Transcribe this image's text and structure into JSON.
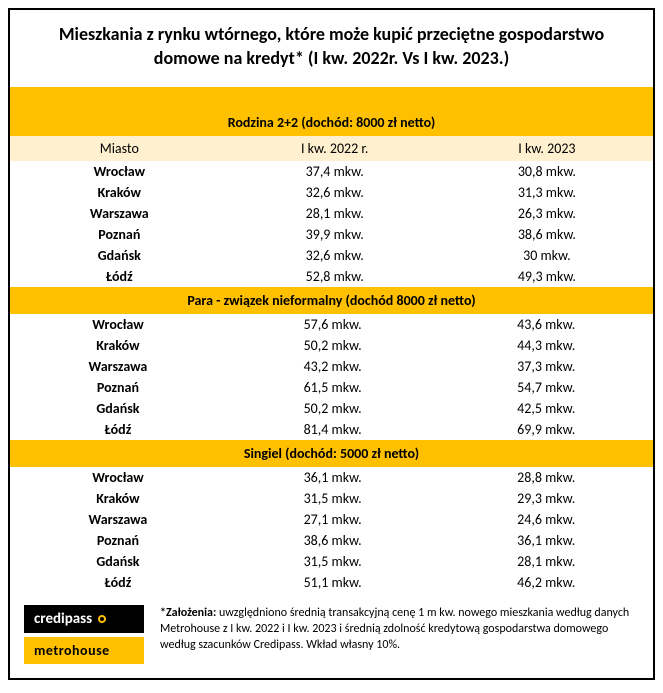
{
  "title": "Mieszkania z rynku wtórnego, które może kupić przeciętne gospodarstwo domowe na kredyt* (I kw. 2022r. Vs I kw. 2023.)",
  "columns": {
    "city": "Miasto",
    "c2022": "I kw. 2022 r.",
    "c2023": "I kw. 2023"
  },
  "sections": [
    {
      "label": "Rodzina 2+2 (dochód: 8000 zł netto)",
      "show_header": true,
      "rows": [
        {
          "city": "Wrocław",
          "v2022": "37,4 mkw.",
          "v2023": "30,8 mkw."
        },
        {
          "city": "Kraków",
          "v2022": "32,6 mkw.",
          "v2023": "31,3 mkw."
        },
        {
          "city": "Warszawa",
          "v2022": "28,1 mkw.",
          "v2023": "26,3 mkw."
        },
        {
          "city": "Poznań",
          "v2022": "39,9 mkw.",
          "v2023": "38,6 mkw."
        },
        {
          "city": "Gdańsk",
          "v2022": "32,6 mkw.",
          "v2023": "30 mkw."
        },
        {
          "city": "Łódź",
          "v2022": "52,8 mkw.",
          "v2023": "49,3 mkw."
        }
      ]
    },
    {
      "label": "Para - związek nieformalny (dochód 8000 zł netto)",
      "show_header": false,
      "rows": [
        {
          "city": "Wrocław",
          "v2022": "57,6 mkw.",
          "v2023": "43,6 mkw."
        },
        {
          "city": "Kraków",
          "v2022": "50,2 mkw.",
          "v2023": "44,3 mkw."
        },
        {
          "city": "Warszawa",
          "v2022": "43,2 mkw.",
          "v2023": "37,3 mkw."
        },
        {
          "city": "Poznań",
          "v2022": "61,5 mkw.",
          "v2023": "54,7 mkw."
        },
        {
          "city": "Gdańsk",
          "v2022": "50,2 mkw.",
          "v2023": "42,5 mkw."
        },
        {
          "city": "Łódź",
          "v2022": "81,4 mkw.",
          "v2023": "69,9 mkw."
        }
      ]
    },
    {
      "label": "Singiel (dochód: 5000 zł netto)",
      "show_header": false,
      "rows": [
        {
          "city": "Wrocław",
          "v2022": "36,1 mkw.",
          "v2023": "28,8 mkw."
        },
        {
          "city": "Kraków",
          "v2022": "31,5 mkw.",
          "v2023": "29,3 mkw."
        },
        {
          "city": "Warszawa",
          "v2022": "27,1 mkw.",
          "v2023": "24,6 mkw."
        },
        {
          "city": "Poznań",
          "v2022": "38,6 mkw.",
          "v2023": "36,1 mkw."
        },
        {
          "city": "Gdańsk",
          "v2022": "31,5 mkw.",
          "v2023": "28,1 mkw."
        },
        {
          "city": "Łódź",
          "v2022": "51,1 mkw.",
          "v2023": "46,2 mkw."
        }
      ]
    }
  ],
  "logos": {
    "credipass": "credipass",
    "metrohouse": "metrohouse"
  },
  "footnote_label": "*Założenia:",
  "footnote_text": " uwzględniono średnią transakcyjną cenę 1 m kw. nowego mieszkania według danych Metrohouse z I kw. 2022 i I kw. 2023 i średnią zdolność kredytową gospodarstwa domowego według szacunków Credipass. Wkład własny 10%.",
  "colors": {
    "accent": "#ffc000",
    "header_row": "#fff0d0",
    "border": "#000000",
    "background": "#ffffff"
  }
}
